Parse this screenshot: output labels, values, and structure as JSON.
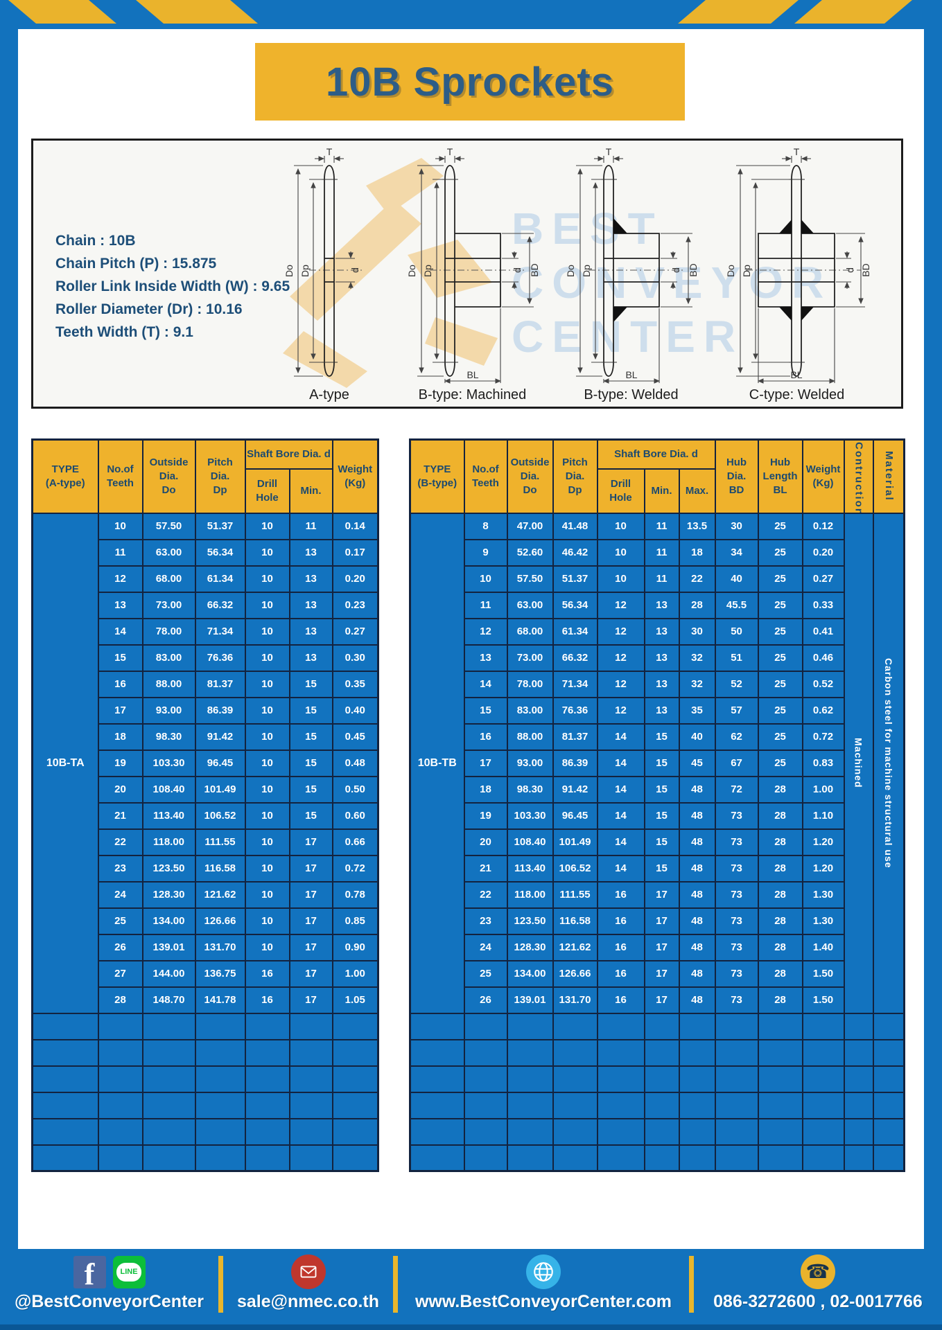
{
  "header": {
    "title": "10B Sprockets"
  },
  "colors": {
    "frame_blue": "#1272bd",
    "accent_yellow": "#efb32c",
    "cell_blue": "#1273bf",
    "header_text": "#1c4a70",
    "border_navy": "#13233f",
    "title_text": "#2d5d87"
  },
  "specs": [
    "Chain  :  10B",
    "Chain Pitch (P)  :  15.875",
    "Roller Link Inside Width (W) : 9.65",
    "Roller Diameter (Dr)  : 10.16",
    "Teeth Width (T)  :  9.1"
  ],
  "diagram": {
    "captions": [
      "A-type",
      "B-type: Machined",
      "B-type: Welded",
      "C-type: Welded"
    ],
    "dims": {
      "T": "T",
      "Do": "Do",
      "Dp": "Dp",
      "d": "d",
      "BD": "BD",
      "BL": "BL"
    },
    "watermark": [
      "BEST",
      "CONVEYOR",
      "CENTER"
    ]
  },
  "table_a": {
    "type_label": "10B-TA",
    "headers": {
      "type": "TYPE\n(A-type)",
      "teeth": "No.of\nTeeth",
      "outside": "Outside\nDia.\nDo",
      "pitch": "Pitch Dia.\nDp",
      "shaft_bore": "Shaft Bore Dia. d",
      "drill": "Drill Hole",
      "min": "Min.",
      "weight": "Weight\n(Kg)"
    },
    "rows": [
      [
        "10",
        "57.50",
        "51.37",
        "10",
        "11",
        "0.14"
      ],
      [
        "11",
        "63.00",
        "56.34",
        "10",
        "13",
        "0.17"
      ],
      [
        "12",
        "68.00",
        "61.34",
        "10",
        "13",
        "0.20"
      ],
      [
        "13",
        "73.00",
        "66.32",
        "10",
        "13",
        "0.23"
      ],
      [
        "14",
        "78.00",
        "71.34",
        "10",
        "13",
        "0.27"
      ],
      [
        "15",
        "83.00",
        "76.36",
        "10",
        "13",
        "0.30"
      ],
      [
        "16",
        "88.00",
        "81.37",
        "10",
        "15",
        "0.35"
      ],
      [
        "17",
        "93.00",
        "86.39",
        "10",
        "15",
        "0.40"
      ],
      [
        "18",
        "98.30",
        "91.42",
        "10",
        "15",
        "0.45"
      ],
      [
        "19",
        "103.30",
        "96.45",
        "10",
        "15",
        "0.48"
      ],
      [
        "20",
        "108.40",
        "101.49",
        "10",
        "15",
        "0.50"
      ],
      [
        "21",
        "113.40",
        "106.52",
        "10",
        "15",
        "0.60"
      ],
      [
        "22",
        "118.00",
        "111.55",
        "10",
        "17",
        "0.66"
      ],
      [
        "23",
        "123.50",
        "116.58",
        "10",
        "17",
        "0.72"
      ],
      [
        "24",
        "128.30",
        "121.62",
        "10",
        "17",
        "0.78"
      ],
      [
        "25",
        "134.00",
        "126.66",
        "10",
        "17",
        "0.85"
      ],
      [
        "26",
        "139.01",
        "131.70",
        "10",
        "17",
        "0.90"
      ],
      [
        "27",
        "144.00",
        "136.75",
        "16",
        "17",
        "1.00"
      ],
      [
        "28",
        "148.70",
        "141.78",
        "16",
        "17",
        "1.05"
      ]
    ],
    "empty_rows": 6
  },
  "table_b": {
    "type_label": "10B-TB",
    "construction": "Machined",
    "material": "Carbon steel  for machine structural use",
    "headers": {
      "type": "TYPE\n(B-type)",
      "teeth": "No.of\nTeeth",
      "outside": "Outside\nDia.\nDo",
      "pitch": "Pitch Dia.\nDp",
      "shaft_bore": "Shaft Bore Dia. d",
      "drill": "Drill Hole",
      "min": "Min.",
      "max": "Max.",
      "hub_dia": "Hub Dia.\nBD",
      "hub_len": "Hub\nLength\nBL",
      "weight": "Weight\n(Kg)",
      "construction": "Contruction",
      "material": "Material"
    },
    "rows": [
      [
        "8",
        "47.00",
        "41.48",
        "10",
        "11",
        "13.5",
        "30",
        "25",
        "0.12"
      ],
      [
        "9",
        "52.60",
        "46.42",
        "10",
        "11",
        "18",
        "34",
        "25",
        "0.20"
      ],
      [
        "10",
        "57.50",
        "51.37",
        "10",
        "11",
        "22",
        "40",
        "25",
        "0.27"
      ],
      [
        "11",
        "63.00",
        "56.34",
        "12",
        "13",
        "28",
        "45.5",
        "25",
        "0.33"
      ],
      [
        "12",
        "68.00",
        "61.34",
        "12",
        "13",
        "30",
        "50",
        "25",
        "0.41"
      ],
      [
        "13",
        "73.00",
        "66.32",
        "12",
        "13",
        "32",
        "51",
        "25",
        "0.46"
      ],
      [
        "14",
        "78.00",
        "71.34",
        "12",
        "13",
        "32",
        "52",
        "25",
        "0.52"
      ],
      [
        "15",
        "83.00",
        "76.36",
        "12",
        "13",
        "35",
        "57",
        "25",
        "0.62"
      ],
      [
        "16",
        "88.00",
        "81.37",
        "14",
        "15",
        "40",
        "62",
        "25",
        "0.72"
      ],
      [
        "17",
        "93.00",
        "86.39",
        "14",
        "15",
        "45",
        "67",
        "25",
        "0.83"
      ],
      [
        "18",
        "98.30",
        "91.42",
        "14",
        "15",
        "48",
        "72",
        "28",
        "1.00"
      ],
      [
        "19",
        "103.30",
        "96.45",
        "14",
        "15",
        "48",
        "73",
        "28",
        "1.10"
      ],
      [
        "20",
        "108.40",
        "101.49",
        "14",
        "15",
        "48",
        "73",
        "28",
        "1.20"
      ],
      [
        "21",
        "113.40",
        "106.52",
        "14",
        "15",
        "48",
        "73",
        "28",
        "1.20"
      ],
      [
        "22",
        "118.00",
        "111.55",
        "16",
        "17",
        "48",
        "73",
        "28",
        "1.30"
      ],
      [
        "23",
        "123.50",
        "116.58",
        "16",
        "17",
        "48",
        "73",
        "28",
        "1.30"
      ],
      [
        "24",
        "128.30",
        "121.62",
        "16",
        "17",
        "48",
        "73",
        "28",
        "1.40"
      ],
      [
        "25",
        "134.00",
        "126.66",
        "16",
        "17",
        "48",
        "73",
        "28",
        "1.50"
      ],
      [
        "26",
        "139.01",
        "131.70",
        "16",
        "17",
        "48",
        "73",
        "28",
        "1.50"
      ]
    ],
    "empty_rows": 6
  },
  "footer": {
    "handle": "@BestConveyorCenter",
    "email": "sale@nmec.co.th",
    "website": "www.BestConveyorCenter.com",
    "phone": "086-3272600 , 02-0017766",
    "icons": [
      "facebook-icon",
      "line-icon",
      "mail-icon",
      "globe-icon",
      "phone-icon"
    ]
  }
}
